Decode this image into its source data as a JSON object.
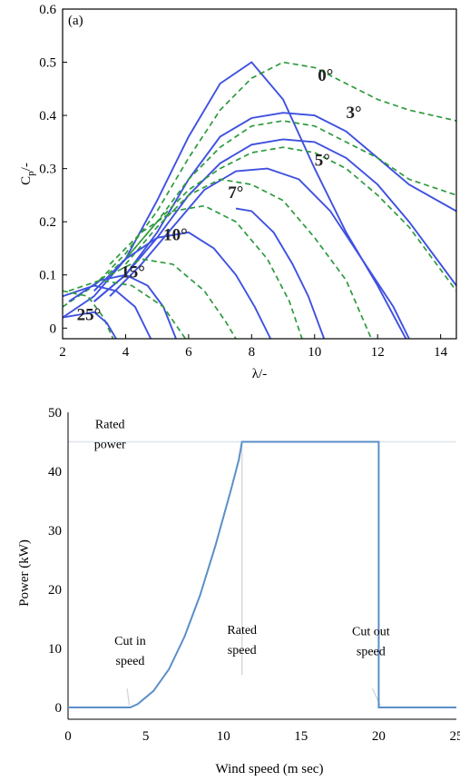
{
  "chart_data": [
    {
      "type": "line",
      "panel_label": "(a)",
      "xlabel": "λ/-",
      "ylabel_main": "C",
      "ylabel_sub": "p",
      "ylabel_suffix": "/-",
      "xlim": [
        2,
        14.5
      ],
      "ylim": [
        -0.02,
        0.6
      ],
      "xticks": [
        2,
        4,
        6,
        8,
        10,
        12,
        14
      ],
      "yticks": [
        0,
        0.1,
        0.2,
        0.3,
        0.4,
        0.5,
        0.6
      ],
      "series_styles": {
        "solid_color": "#3f51e0",
        "dashed_color": "#2e9a3e"
      },
      "pitch_labels": [
        {
          "text": "0°",
          "x": 10.1,
          "y": 0.465
        },
        {
          "text": "3°",
          "x": 11.0,
          "y": 0.395
        },
        {
          "text": "5°",
          "x": 10.0,
          "y": 0.305
        },
        {
          "text": "7°",
          "x": 7.25,
          "y": 0.245
        },
        {
          "text": "10°",
          "x": 5.2,
          "y": 0.165
        },
        {
          "text": "15°",
          "x": 3.85,
          "y": 0.095
        },
        {
          "text": "25°",
          "x": 2.45,
          "y": 0.015
        }
      ],
      "series": [
        {
          "style": "solid",
          "points": [
            [
              2,
              0.02
            ],
            [
              3,
              0.06
            ],
            [
              4,
              0.13
            ],
            [
              5,
              0.24
            ],
            [
              6,
              0.36
            ],
            [
              7,
              0.46
            ],
            [
              8,
              0.5
            ],
            [
              9,
              0.43
            ],
            [
              10,
              0.3
            ],
            [
              11,
              0.18
            ],
            [
              12,
              0.08
            ],
            [
              12.9,
              -0.02
            ]
          ]
        },
        {
          "style": "dashed",
          "points": [
            [
              2,
              0.04
            ],
            [
              3,
              0.08
            ],
            [
              4,
              0.14
            ],
            [
              5,
              0.22
            ],
            [
              6,
              0.32
            ],
            [
              7,
              0.41
            ],
            [
              8,
              0.47
            ],
            [
              9,
              0.5
            ],
            [
              10,
              0.49
            ],
            [
              11,
              0.46
            ],
            [
              12,
              0.43
            ],
            [
              13,
              0.41
            ],
            [
              14.5,
              0.39
            ]
          ]
        },
        {
          "style": "solid",
          "points": [
            [
              3,
              0.05
            ],
            [
              4,
              0.1
            ],
            [
              5,
              0.18
            ],
            [
              6,
              0.28
            ],
            [
              7,
              0.36
            ],
            [
              8,
              0.395
            ],
            [
              9,
              0.405
            ],
            [
              10,
              0.4
            ],
            [
              11,
              0.37
            ],
            [
              12,
              0.32
            ],
            [
              13,
              0.27
            ],
            [
              14.5,
              0.22
            ]
          ]
        },
        {
          "style": "dashed",
          "points": [
            [
              3,
              0.07
            ],
            [
              4,
              0.13
            ],
            [
              5,
              0.2
            ],
            [
              6,
              0.28
            ],
            [
              7,
              0.34
            ],
            [
              8,
              0.38
            ],
            [
              9,
              0.39
            ],
            [
              10,
              0.38
            ],
            [
              11,
              0.35
            ],
            [
              12,
              0.32
            ],
            [
              13,
              0.28
            ],
            [
              14.5,
              0.25
            ]
          ]
        },
        {
          "style": "solid",
          "points": [
            [
              3,
              0.05
            ],
            [
              4,
              0.1
            ],
            [
              5,
              0.17
            ],
            [
              6,
              0.25
            ],
            [
              7,
              0.31
            ],
            [
              8,
              0.345
            ],
            [
              9,
              0.355
            ],
            [
              10,
              0.35
            ],
            [
              11,
              0.32
            ],
            [
              12,
              0.27
            ],
            [
              13,
              0.2
            ],
            [
              14,
              0.12
            ],
            [
              14.5,
              0.08
            ]
          ]
        },
        {
          "style": "dashed",
          "points": [
            [
              3,
              0.08
            ],
            [
              4,
              0.13
            ],
            [
              5,
              0.2
            ],
            [
              6,
              0.26
            ],
            [
              7,
              0.3
            ],
            [
              8,
              0.33
            ],
            [
              9,
              0.34
            ],
            [
              10,
              0.33
            ],
            [
              11,
              0.3
            ],
            [
              12,
              0.25
            ],
            [
              13,
              0.19
            ],
            [
              14,
              0.11
            ],
            [
              14.5,
              0.07
            ]
          ]
        },
        {
          "style": "solid",
          "points": [
            [
              3.5,
              0.06
            ],
            [
              4.5,
              0.12
            ],
            [
              5.5,
              0.19
            ],
            [
              6.5,
              0.26
            ],
            [
              7.5,
              0.295
            ],
            [
              8.5,
              0.3
            ],
            [
              9.5,
              0.28
            ],
            [
              10.5,
              0.22
            ],
            [
              11.5,
              0.13
            ],
            [
              12.5,
              0.04
            ],
            [
              13,
              -0.02
            ]
          ]
        },
        {
          "style": "dashed",
          "points": [
            [
              4,
              0.12
            ],
            [
              5,
              0.19
            ],
            [
              6,
              0.25
            ],
            [
              7,
              0.28
            ],
            [
              8,
              0.27
            ],
            [
              9,
              0.24
            ],
            [
              10,
              0.17
            ],
            [
              11,
              0.09
            ],
            [
              11.8,
              -0.02
            ]
          ]
        },
        {
          "style": "solid",
          "points": [
            [
              7.5,
              0.225
            ],
            [
              8,
              0.22
            ],
            [
              8.7,
              0.18
            ],
            [
              9.3,
              0.12
            ],
            [
              9.8,
              0.06
            ],
            [
              10.3,
              -0.02
            ]
          ]
        },
        {
          "style": "dashed",
          "points": [
            [
              3.5,
              0.12
            ],
            [
              4.5,
              0.18
            ],
            [
              5.5,
              0.22
            ],
            [
              6.5,
              0.23
            ],
            [
              7.5,
              0.2
            ],
            [
              8.5,
              0.13
            ],
            [
              9.2,
              0.05
            ],
            [
              9.6,
              -0.02
            ]
          ]
        },
        {
          "style": "solid",
          "points": [
            [
              3,
              0.07
            ],
            [
              4,
              0.13
            ],
            [
              5,
              0.17
            ],
            [
              6,
              0.18
            ],
            [
              6.8,
              0.15
            ],
            [
              7.5,
              0.1
            ],
            [
              8.1,
              0.04
            ],
            [
              8.6,
              -0.02
            ]
          ]
        },
        {
          "style": "dashed",
          "points": [
            [
              3.5,
              0.1
            ],
            [
              4.5,
              0.13
            ],
            [
              5.5,
              0.12
            ],
            [
              6.5,
              0.07
            ],
            [
              7.2,
              0.01
            ],
            [
              7.5,
              -0.02
            ]
          ]
        },
        {
          "style": "solid",
          "points": [
            [
              2.2,
              0.05
            ],
            [
              3.2,
              0.09
            ],
            [
              4,
              0.1
            ],
            [
              4.7,
              0.08
            ],
            [
              5.2,
              0.04
            ],
            [
              5.6,
              -0.02
            ]
          ]
        },
        {
          "style": "dashed",
          "points": [
            [
              2.2,
              0.07
            ],
            [
              3.2,
              0.09
            ],
            [
              4.2,
              0.08
            ],
            [
              5.2,
              0.04
            ],
            [
              5.9,
              -0.02
            ]
          ]
        },
        {
          "style": "solid",
          "points": [
            [
              2,
              0.06
            ],
            [
              3,
              0.08
            ],
            [
              3.7,
              0.07
            ],
            [
              4.3,
              0.04
            ],
            [
              4.8,
              -0.02
            ]
          ]
        },
        {
          "style": "dashed",
          "points": [
            [
              2,
              0.07
            ],
            [
              2.8,
              0.06
            ],
            [
              3.3,
              0.02
            ],
            [
              3.6,
              -0.02
            ]
          ]
        },
        {
          "style": "solid",
          "points": [
            [
              2,
              0.02
            ],
            [
              3,
              0.03
            ],
            [
              3.4,
              0.01
            ],
            [
              3.7,
              -0.02
            ]
          ]
        }
      ]
    },
    {
      "type": "line",
      "xlabel": "Wind speed (m sec)",
      "ylabel": "Power (kW)",
      "xlim": [
        0,
        25
      ],
      "ylim": [
        -2,
        50
      ],
      "xticks": [
        0,
        5,
        10,
        15,
        20,
        25
      ],
      "yticks": [
        0,
        10,
        20,
        30,
        40,
        50
      ],
      "line_color": "#5b8fc7",
      "rated_power_kW": 45,
      "series": [
        {
          "points": [
            [
              0,
              0
            ],
            [
              4,
              0
            ],
            [
              4.5,
              0.6
            ],
            [
              5.5,
              2.8
            ],
            [
              6.5,
              6.5
            ],
            [
              7.5,
              12
            ],
            [
              8.5,
              19
            ],
            [
              9.5,
              27.5
            ],
            [
              10.5,
              37
            ],
            [
              11,
              42
            ],
            [
              11.2,
              45
            ],
            [
              20,
              45
            ],
            [
              20,
              0
            ],
            [
              25,
              0
            ]
          ]
        }
      ],
      "annotations": [
        {
          "lines": [
            "Rated",
            "power"
          ],
          "x": 2.7,
          "y": 47.3
        },
        {
          "lines": [
            "Cut in",
            "speed"
          ],
          "x": 4.0,
          "y": 10.6
        },
        {
          "lines": [
            "Rated",
            "speed"
          ],
          "x": 11.2,
          "y": 12.5
        },
        {
          "lines": [
            "Cut out",
            "speed"
          ],
          "x": 19.5,
          "y": 12.2
        }
      ],
      "pointers": [
        {
          "from": [
            3.8,
            3.2
          ],
          "to": [
            3.95,
            0.3
          ]
        },
        {
          "from": [
            11.2,
            5.5
          ],
          "to": [
            11.2,
            44.5
          ]
        },
        {
          "from": [
            19.6,
            3.2
          ],
          "to": [
            20.1,
            0.3
          ]
        }
      ]
    }
  ]
}
